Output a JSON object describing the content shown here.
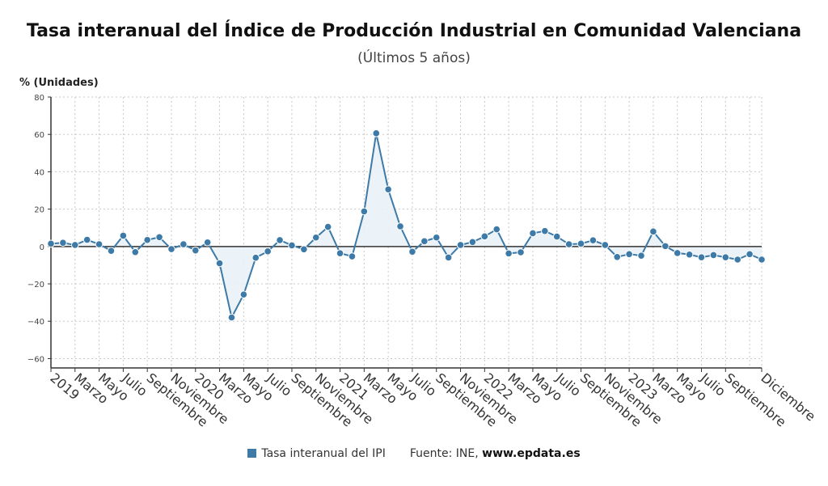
{
  "title": "Tasa interanual del Índice de Producción Industrial en Comunidad Valenciana",
  "subtitle": "(Últimos 5 años)",
  "legend": {
    "series_label": "Tasa interanual del IPI",
    "source_prefix": "Fuente: INE,",
    "source_site": "www.epdata.es"
  },
  "colors": {
    "line": "#3d7aa8",
    "fill": "#e9f1f7",
    "grid": "#c8c8c8",
    "axis": "#333333"
  },
  "chart_data": {
    "type": "line",
    "ylabel": "% (Unidades)",
    "ylim": [
      -65,
      80
    ],
    "yticks": [
      80,
      60,
      40,
      20,
      0,
      -20,
      -40,
      -60
    ],
    "grid": true,
    "legend_position": "bottom",
    "x_ticks": [
      {
        "index": 0,
        "label": "2019"
      },
      {
        "index": 2,
        "label": "Marzo"
      },
      {
        "index": 4,
        "label": "Mayo"
      },
      {
        "index": 6,
        "label": "Julio"
      },
      {
        "index": 8,
        "label": "Septiembre"
      },
      {
        "index": 10,
        "label": "Noviembre"
      },
      {
        "index": 12,
        "label": "2020"
      },
      {
        "index": 14,
        "label": "Marzo"
      },
      {
        "index": 16,
        "label": "Mayo"
      },
      {
        "index": 18,
        "label": "Julio"
      },
      {
        "index": 20,
        "label": "Septiembre"
      },
      {
        "index": 22,
        "label": "Noviembre"
      },
      {
        "index": 24,
        "label": "2021"
      },
      {
        "index": 26,
        "label": "Marzo"
      },
      {
        "index": 28,
        "label": "Mayo"
      },
      {
        "index": 30,
        "label": "Julio"
      },
      {
        "index": 32,
        "label": "Septiembre"
      },
      {
        "index": 34,
        "label": "Noviembre"
      },
      {
        "index": 36,
        "label": "2022"
      },
      {
        "index": 38,
        "label": "Marzo"
      },
      {
        "index": 40,
        "label": "Mayo"
      },
      {
        "index": 42,
        "label": "Julio"
      },
      {
        "index": 44,
        "label": "Septiembre"
      },
      {
        "index": 46,
        "label": "Noviembre"
      },
      {
        "index": 48,
        "label": "2023"
      },
      {
        "index": 50,
        "label": "Marzo"
      },
      {
        "index": 52,
        "label": "Mayo"
      },
      {
        "index": 54,
        "label": "Julio"
      },
      {
        "index": 56,
        "label": "Septiembre"
      },
      {
        "index": 59,
        "label": "Diciembre"
      }
    ],
    "series": [
      {
        "name": "Tasa interanual del IPI",
        "values": [
          1.5,
          2.0,
          0.8,
          3.6,
          1.2,
          -2.3,
          5.8,
          -3.0,
          3.5,
          5.0,
          -1.4,
          1.2,
          -2.1,
          2.2,
          -9.0,
          -38.0,
          -25.7,
          -6.0,
          -2.6,
          3.4,
          0.6,
          -1.5,
          4.8,
          10.5,
          -3.6,
          -5.3,
          18.8,
          60.6,
          30.6,
          10.8,
          -2.8,
          2.8,
          4.8,
          -5.9,
          0.8,
          2.4,
          5.4,
          9.2,
          -3.7,
          -3.1,
          7.1,
          8.3,
          5.3,
          1.2,
          1.5,
          3.3,
          0.8,
          -5.6,
          -4.1,
          -4.9,
          8.0,
          0.2,
          -3.5,
          -4.3,
          -5.8,
          -4.6,
          -5.8,
          -7.0,
          -4.1,
          -7.0
        ]
      }
    ]
  }
}
